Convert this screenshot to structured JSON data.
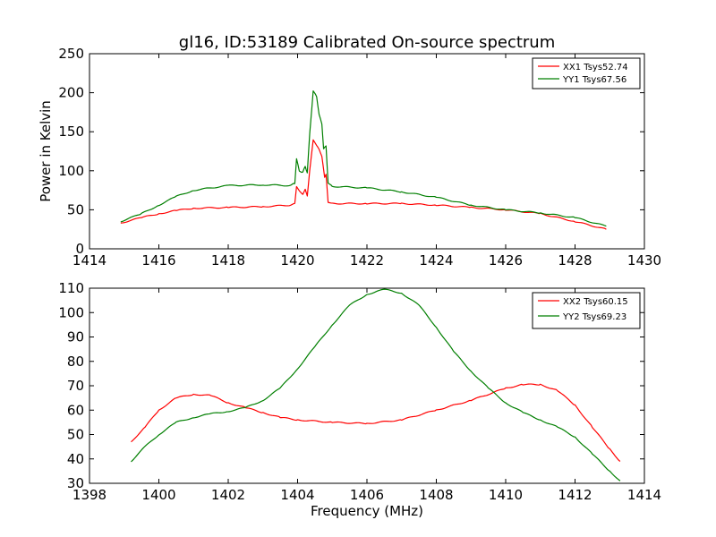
{
  "title": "gl16, ID:53189 Calibrated On-source spectrum",
  "colors": {
    "xx": "#ff0000",
    "yy": "#007f00"
  },
  "chart_data": [
    {
      "type": "line",
      "title": "gl16, ID:53189 Calibrated On-source spectrum",
      "xlabel": "",
      "ylabel": "Power in Kelvin",
      "xlim": [
        1414,
        1430
      ],
      "ylim": [
        0,
        250
      ],
      "xticks": [
        1414,
        1416,
        1418,
        1420,
        1422,
        1424,
        1426,
        1428,
        1430
      ],
      "yticks": [
        0,
        50,
        100,
        150,
        200,
        250
      ],
      "legend_position": "top-right",
      "series": [
        {
          "name": "XX1 Tsys52.74",
          "color": "#ff0000",
          "points": [
            [
              1414.9,
              33
            ],
            [
              1415.5,
              40
            ],
            [
              1416,
              45
            ],
            [
              1416.5,
              49
            ],
            [
              1417,
              52
            ],
            [
              1418,
              53
            ],
            [
              1419,
              54
            ],
            [
              1419.8,
              56
            ],
            [
              1419.92,
              58
            ],
            [
              1419.97,
              80
            ],
            [
              1420.05,
              74
            ],
            [
              1420.15,
              70
            ],
            [
              1420.22,
              76
            ],
            [
              1420.28,
              68
            ],
            [
              1420.35,
              100
            ],
            [
              1420.45,
              140
            ],
            [
              1420.55,
              132
            ],
            [
              1420.62,
              128
            ],
            [
              1420.7,
              118
            ],
            [
              1420.78,
              92
            ],
            [
              1420.82,
              95
            ],
            [
              1420.88,
              60
            ],
            [
              1421,
              58
            ],
            [
              1422,
              58
            ],
            [
              1423,
              58
            ],
            [
              1424,
              56
            ],
            [
              1425,
              53
            ],
            [
              1426,
              50
            ],
            [
              1427,
              45
            ],
            [
              1428,
              35
            ],
            [
              1428.9,
              25
            ]
          ]
        },
        {
          "name": "YY1 Tsys67.56",
          "color": "#007f00",
          "points": [
            [
              1414.9,
              35
            ],
            [
              1415.5,
              45
            ],
            [
              1416,
              56
            ],
            [
              1416.5,
              67
            ],
            [
              1417,
              75
            ],
            [
              1418,
              81
            ],
            [
              1419,
              82
            ],
            [
              1419.8,
              81
            ],
            [
              1419.92,
              84
            ],
            [
              1419.97,
              115
            ],
            [
              1420.05,
              100
            ],
            [
              1420.15,
              98
            ],
            [
              1420.22,
              106
            ],
            [
              1420.28,
              97
            ],
            [
              1420.35,
              148
            ],
            [
              1420.45,
              202
            ],
            [
              1420.55,
              195
            ],
            [
              1420.62,
              172
            ],
            [
              1420.7,
              160
            ],
            [
              1420.75,
              128
            ],
            [
              1420.82,
              132
            ],
            [
              1420.88,
              84
            ],
            [
              1421,
              80
            ],
            [
              1422,
              78
            ],
            [
              1423,
              73
            ],
            [
              1424,
              66
            ],
            [
              1425,
              56
            ],
            [
              1426,
              50
            ],
            [
              1427,
              46
            ],
            [
              1428,
              40
            ],
            [
              1428.9,
              29
            ]
          ]
        }
      ]
    },
    {
      "type": "line",
      "title": "",
      "xlabel": "Frequency (MHz)",
      "ylabel": "",
      "xlim": [
        1398,
        1414
      ],
      "ylim": [
        30,
        110
      ],
      "xticks": [
        1398,
        1400,
        1402,
        1404,
        1406,
        1408,
        1410,
        1412,
        1414
      ],
      "yticks": [
        30,
        40,
        50,
        60,
        70,
        80,
        90,
        100,
        110
      ],
      "legend_position": "top-right",
      "series": [
        {
          "name": "XX2 Tsys60.15",
          "color": "#ff0000",
          "points": [
            [
              1399.2,
              47
            ],
            [
              1399.6,
              53
            ],
            [
              1400,
              60
            ],
            [
              1400.5,
              65
            ],
            [
              1401,
              66.5
            ],
            [
              1401.5,
              66
            ],
            [
              1402,
              63
            ],
            [
              1402.5,
              61
            ],
            [
              1403,
              59
            ],
            [
              1403.5,
              57
            ],
            [
              1404,
              56
            ],
            [
              1405,
              55
            ],
            [
              1406,
              54.5
            ],
            [
              1407,
              56
            ],
            [
              1408,
              60
            ],
            [
              1409,
              64
            ],
            [
              1410,
              69
            ],
            [
              1410.5,
              70.5
            ],
            [
              1411,
              70.5
            ],
            [
              1411.5,
              68
            ],
            [
              1412,
              62
            ],
            [
              1412.5,
              53
            ],
            [
              1413,
              44
            ],
            [
              1413.3,
              39
            ]
          ]
        },
        {
          "name": "YY2 Tsys69.23",
          "color": "#007f00",
          "points": [
            [
              1399.2,
              39
            ],
            [
              1399.6,
              45
            ],
            [
              1400,
              50
            ],
            [
              1400.5,
              55
            ],
            [
              1401,
              57
            ],
            [
              1401.5,
              58.5
            ],
            [
              1402,
              59.5
            ],
            [
              1402.5,
              61
            ],
            [
              1403,
              64
            ],
            [
              1403.5,
              69
            ],
            [
              1404,
              77
            ],
            [
              1404.5,
              86
            ],
            [
              1405,
              95
            ],
            [
              1405.5,
              103
            ],
            [
              1406,
              107.5
            ],
            [
              1406.5,
              109.5
            ],
            [
              1407,
              108
            ],
            [
              1407.5,
              103
            ],
            [
              1408,
              94
            ],
            [
              1408.5,
              84
            ],
            [
              1409,
              76
            ],
            [
              1409.5,
              69
            ],
            [
              1410,
              63
            ],
            [
              1410.5,
              59
            ],
            [
              1411,
              56
            ],
            [
              1411.5,
              53
            ],
            [
              1412,
              49
            ],
            [
              1412.5,
              42
            ],
            [
              1413,
              35
            ],
            [
              1413.3,
              31
            ]
          ]
        }
      ]
    }
  ]
}
